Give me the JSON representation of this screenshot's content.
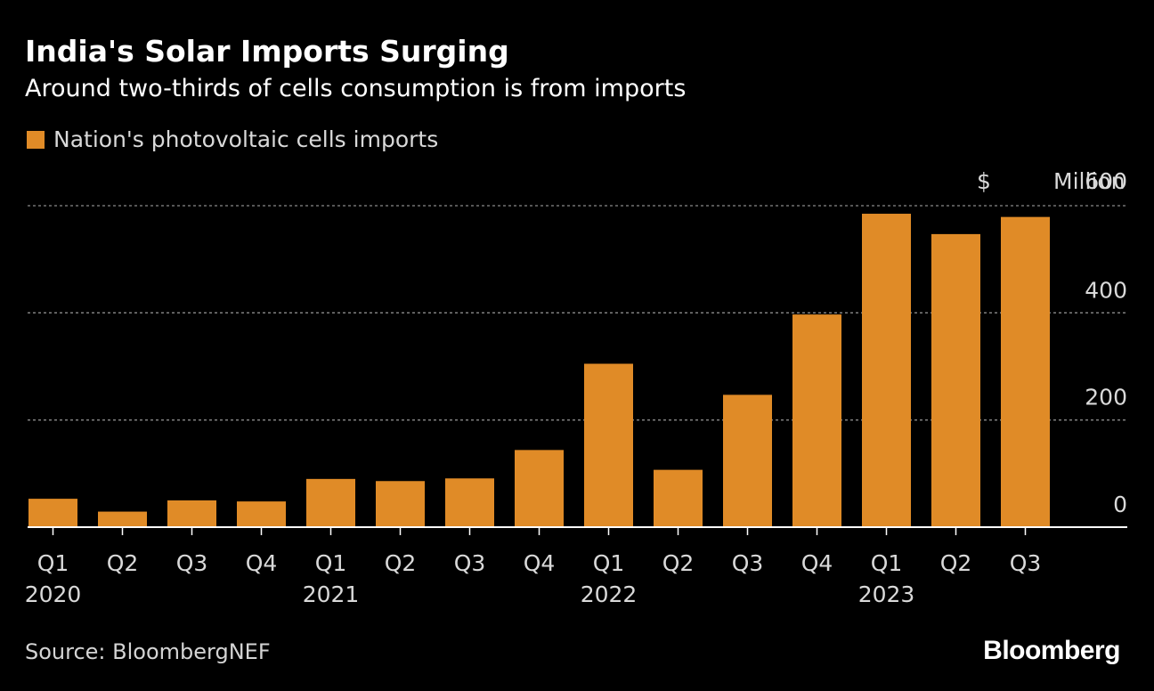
{
  "chart_data": {
    "type": "bar",
    "title": "India's Solar Imports Surging",
    "subtitle": "Around two-thirds of cells consumption is from imports",
    "legend": [
      {
        "name": "Nation's photovoltaic cells imports",
        "color": "#e08b27"
      }
    ],
    "categories": [
      "Q1 2020",
      "Q2 2020",
      "Q3 2020",
      "Q4 2020",
      "Q1 2021",
      "Q2 2021",
      "Q3 2021",
      "Q4 2021",
      "Q1 2022",
      "Q2 2022",
      "Q3 2022",
      "Q4 2022",
      "Q1 2023",
      "Q2 2023",
      "Q3 2023"
    ],
    "quarter_labels": [
      "Q1",
      "Q2",
      "Q3",
      "Q4",
      "Q1",
      "Q2",
      "Q3",
      "Q4",
      "Q1",
      "Q2",
      "Q3",
      "Q4",
      "Q1",
      "Q2",
      "Q3"
    ],
    "year_labels": [
      {
        "label": "2020",
        "index": 0
      },
      {
        "label": "2021",
        "index": 4
      },
      {
        "label": "2022",
        "index": 8
      },
      {
        "label": "2023",
        "index": 12
      }
    ],
    "series": [
      {
        "name": "Nation's photovoltaic cells imports",
        "values": [
          53,
          29,
          50,
          48,
          90,
          86,
          91,
          144,
          305,
          107,
          247,
          397,
          585,
          547,
          579
        ]
      }
    ],
    "yticks": [
      {
        "value": 0,
        "label": "0"
      },
      {
        "value": 200,
        "label": "200"
      },
      {
        "value": 400,
        "label": "400"
      },
      {
        "value": 600,
        "label": "600"
      }
    ],
    "y_unit_prefix": "$",
    "y_unit_suffix": "Million",
    "ylim": [
      0,
      600
    ],
    "grid": true,
    "bar_color": "#e08b27",
    "source": "Source: BloombergNEF",
    "brand": "Bloomberg"
  }
}
